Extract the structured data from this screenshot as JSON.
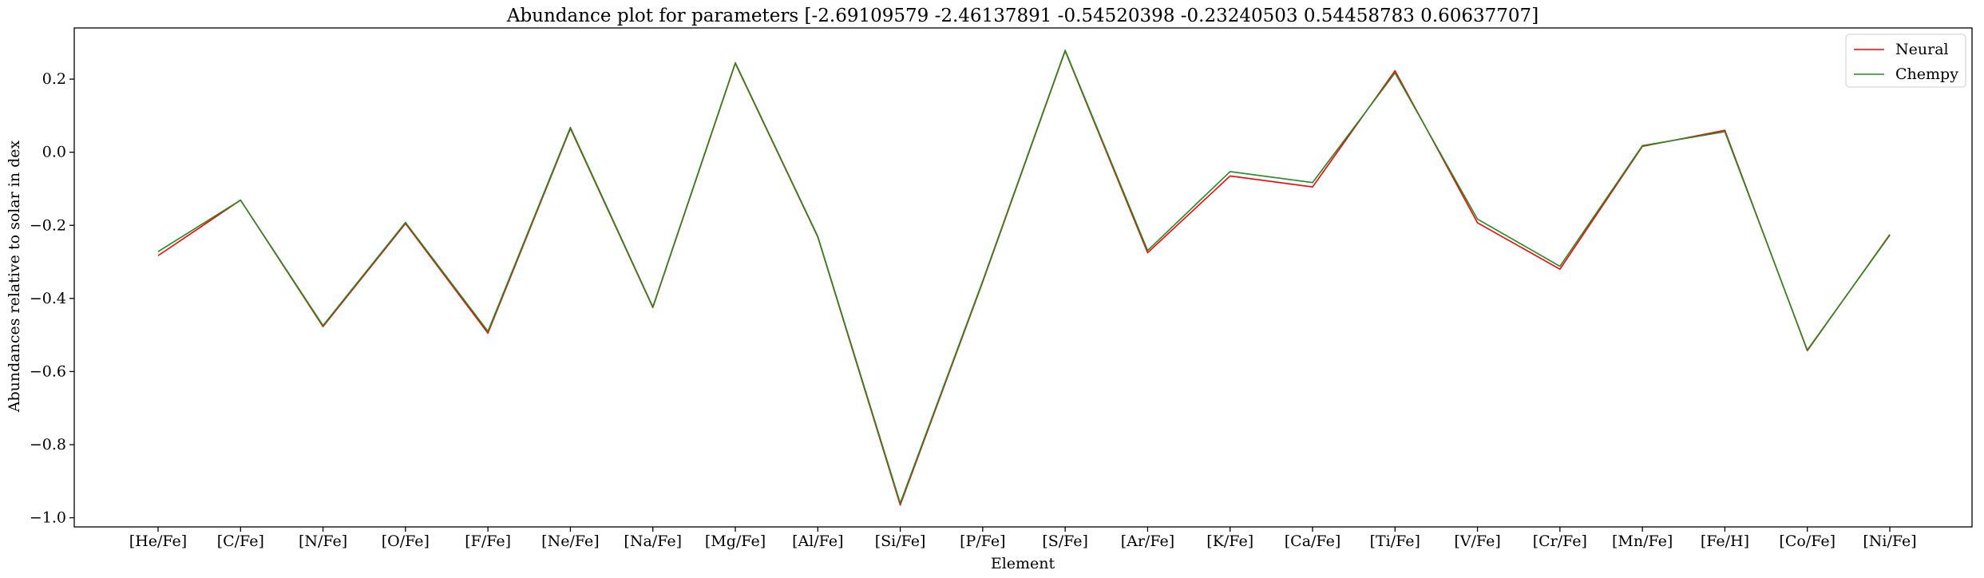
{
  "chart_data": {
    "type": "line",
    "title": "Abundance plot for parameters [-2.69109579 -2.46137891 -0.54520398 -0.23240503 0.54458783 0.60637707]",
    "xlabel": "Element",
    "ylabel": "Abundances relative to solar in dex",
    "categories": [
      "[He/Fe]",
      "[C/Fe]",
      "[N/Fe]",
      "[O/Fe]",
      "[F/Fe]",
      "[Ne/Fe]",
      "[Na/Fe]",
      "[Mg/Fe]",
      "[Al/Fe]",
      "[Si/Fe]",
      "[P/Fe]",
      "[S/Fe]",
      "[Ar/Fe]",
      "[K/Fe]",
      "[Ca/Fe]",
      "[Ti/Fe]",
      "[V/Fe]",
      "[Cr/Fe]",
      "[Mn/Fe]",
      "[Fe/H]",
      "[Co/Fe]",
      "[Ni/Fe]"
    ],
    "ylim": [
      -1.025,
      0.34
    ],
    "yticks": [
      -1.0,
      -0.8,
      -0.6,
      -0.4,
      -0.2,
      0.0,
      0.2
    ],
    "ytick_labels": [
      "−1.0",
      "−0.8",
      "−0.6",
      "−0.4",
      "−0.2",
      "0.0",
      "0.2"
    ],
    "grid": false,
    "legend_position": "top-right",
    "series": [
      {
        "name": "Neural",
        "color": "#ff0000",
        "values": [
          -0.283,
          -0.131,
          -0.477,
          -0.195,
          -0.495,
          0.065,
          -0.425,
          0.243,
          -0.232,
          -0.965,
          -0.355,
          0.277,
          -0.275,
          -0.065,
          -0.095,
          0.223,
          -0.193,
          -0.32,
          0.016,
          0.06,
          -0.543,
          -0.225
        ]
      },
      {
        "name": "Chempy",
        "color": "#228b22",
        "values": [
          -0.272,
          -0.131,
          -0.474,
          -0.192,
          -0.49,
          0.068,
          -0.423,
          0.245,
          -0.23,
          -0.96,
          -0.352,
          0.279,
          -0.269,
          -0.053,
          -0.083,
          0.217,
          -0.183,
          -0.312,
          0.018,
          0.056,
          -0.541,
          -0.227
        ]
      }
    ]
  }
}
